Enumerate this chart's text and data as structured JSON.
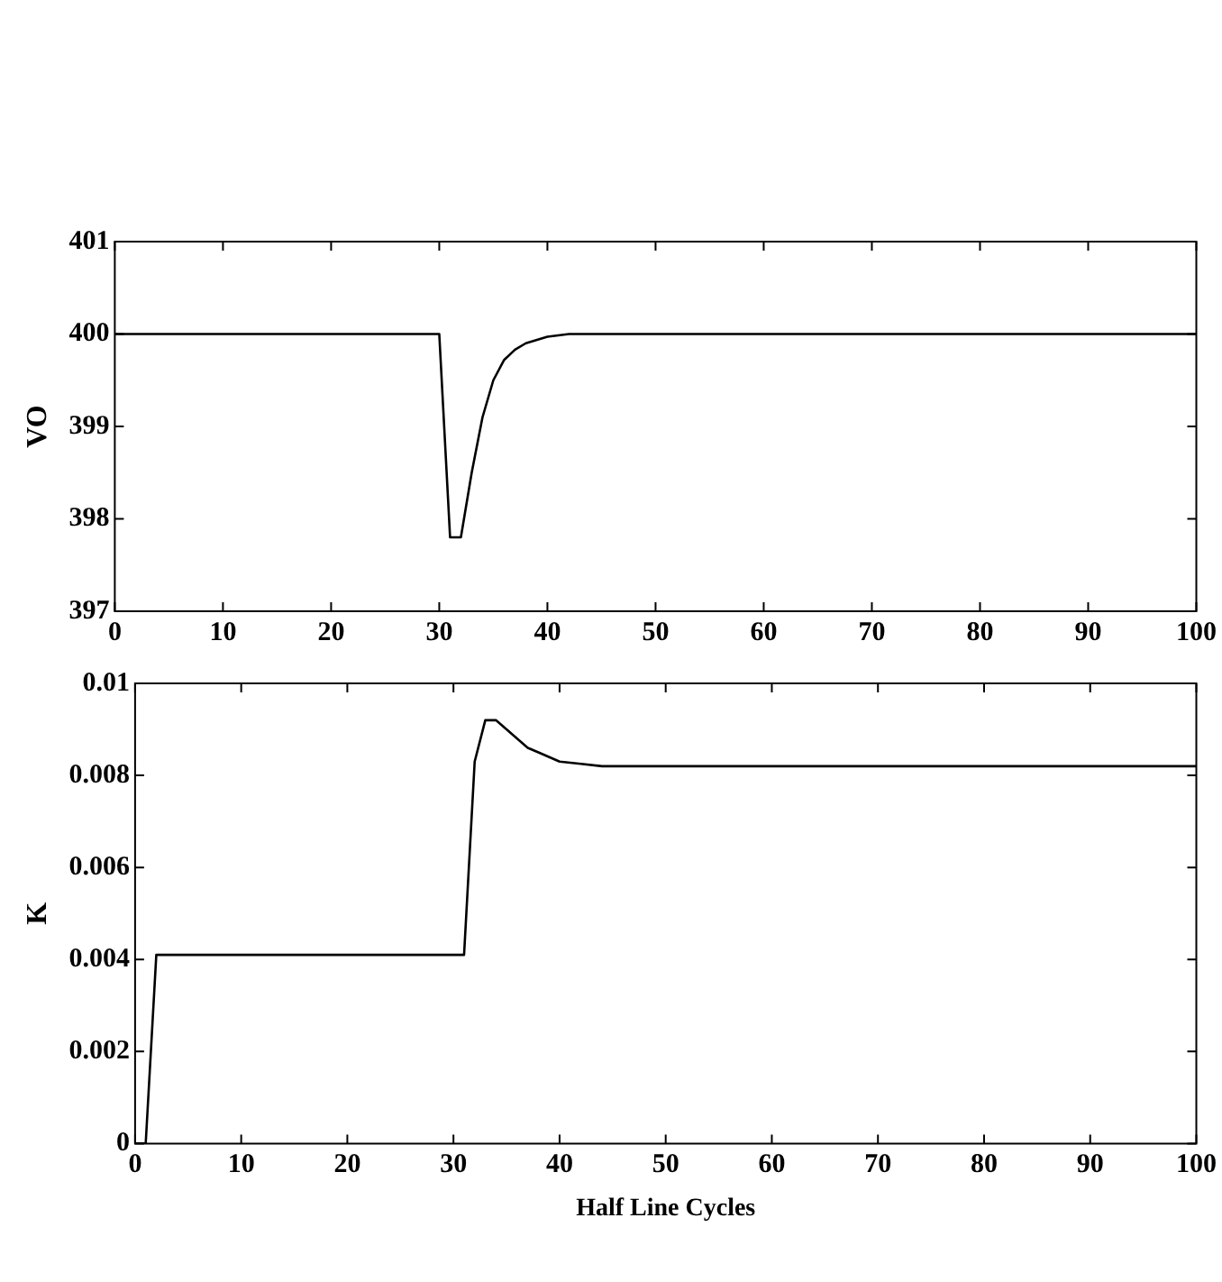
{
  "chart_data": [
    {
      "type": "line",
      "ylabel": "VO",
      "x": [
        0,
        30,
        31,
        32,
        33,
        34,
        35,
        36,
        37,
        38,
        40,
        42,
        45,
        100
      ],
      "series": [
        {
          "color": "#000000",
          "values": [
            400,
            400,
            397.8,
            397.8,
            398.5,
            399.1,
            399.5,
            399.72,
            399.83,
            399.9,
            399.97,
            400,
            400,
            400
          ]
        }
      ],
      "xlim": [
        0,
        100
      ],
      "xticks": [
        0,
        10,
        20,
        30,
        40,
        50,
        60,
        70,
        80,
        90,
        100
      ],
      "ylim": [
        397,
        401
      ],
      "yticks": [
        397,
        398,
        399,
        400,
        401
      ],
      "grid": false,
      "legend": false,
      "marker": "none",
      "line_style": "solid"
    },
    {
      "type": "line",
      "ylabel": "K",
      "xlabel": "Half Line Cycles",
      "x": [
        0,
        1,
        2,
        31,
        32,
        33,
        34,
        35,
        36,
        37,
        38,
        40,
        42,
        44,
        100
      ],
      "series": [
        {
          "color": "#000000",
          "values": [
            0,
            0,
            0.0041,
            0.0041,
            0.0083,
            0.0092,
            0.0092,
            0.009,
            0.0088,
            0.0086,
            0.0085,
            0.0083,
            0.00825,
            0.0082,
            0.0082
          ]
        }
      ],
      "xlim": [
        0,
        100
      ],
      "xticks": [
        0,
        10,
        20,
        30,
        40,
        50,
        60,
        70,
        80,
        90,
        100
      ],
      "ylim": [
        0,
        0.01
      ],
      "yticks": [
        0,
        0.002,
        0.004,
        0.006,
        0.008,
        0.01
      ],
      "grid": false,
      "legend": false,
      "marker": "none",
      "line_style": "solid"
    }
  ]
}
